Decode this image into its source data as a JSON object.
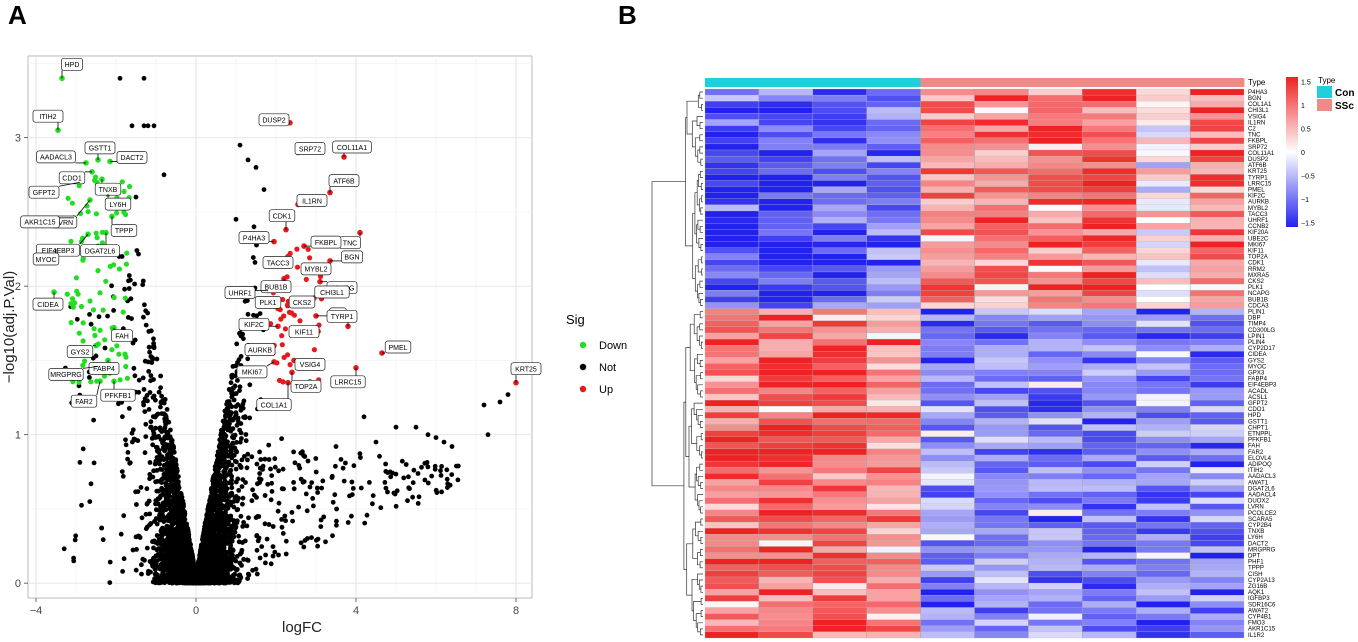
{
  "panels": {
    "a": "A",
    "b": "B"
  },
  "chart_data": [
    {
      "type": "scatter",
      "xlabel": "logFC",
      "ylabel": "−log10(adj.P.Val)",
      "xlim": [
        -4.2,
        8.4
      ],
      "ylim": [
        -0.1,
        3.55
      ],
      "xticks": [
        -4,
        0,
        4,
        8
      ],
      "yticks": [
        0,
        1,
        2,
        3
      ],
      "grid": true,
      "legend": {
        "title": "Sig",
        "position": "right",
        "items": [
          {
            "label": "Down",
            "color": "#22dd22"
          },
          {
            "label": "Not",
            "color": "#000000"
          },
          {
            "label": "Up",
            "color": "#e41a1c"
          }
        ]
      },
      "labeled_points": [
        {
          "gene": "HPD",
          "x": -3.35,
          "y": 3.4,
          "sig": "Down"
        },
        {
          "gene": "ITIH2",
          "x": -3.45,
          "y": 3.05,
          "sig": "Down"
        },
        {
          "gene": "GSTT1",
          "x": -2.45,
          "y": 2.85,
          "sig": "Down"
        },
        {
          "gene": "AADACL3",
          "x": -2.75,
          "y": 2.83,
          "sig": "Down"
        },
        {
          "gene": "DACT2",
          "x": -2.15,
          "y": 2.84,
          "sig": "Down"
        },
        {
          "gene": "CDO1",
          "x": -2.6,
          "y": 2.77,
          "sig": "Down"
        },
        {
          "gene": "TNXB",
          "x": -2.35,
          "y": 2.72,
          "sig": "Down"
        },
        {
          "gene": "GFPT2",
          "x": -2.9,
          "y": 2.7,
          "sig": "Down"
        },
        {
          "gene": "LY6H",
          "x": -2.2,
          "y": 2.62,
          "sig": "Down"
        },
        {
          "gene": "LVRN",
          "x": -2.65,
          "y": 2.58,
          "sig": "Down"
        },
        {
          "gene": "TPPP",
          "x": -2.1,
          "y": 2.47,
          "sig": "Down"
        },
        {
          "gene": "AKR1C15",
          "x": -3.05,
          "y": 2.46,
          "sig": "Down"
        },
        {
          "gene": "EIF4EBP3",
          "x": -2.7,
          "y": 2.35,
          "sig": "Down"
        },
        {
          "gene": "DGAT2L6",
          "x": -2.25,
          "y": 2.36,
          "sig": "Down"
        },
        {
          "gene": "MYOC",
          "x": -3.5,
          "y": 2.25,
          "sig": "Down"
        },
        {
          "gene": "CIDEA",
          "x": -3.55,
          "y": 1.96,
          "sig": "Down"
        },
        {
          "gene": "FAH",
          "x": -2.05,
          "y": 1.72,
          "sig": "Down"
        },
        {
          "gene": "GYS2",
          "x": -2.5,
          "y": 1.6,
          "sig": "Down"
        },
        {
          "gene": "FABP4",
          "x": -2.2,
          "y": 1.5,
          "sig": "Down"
        },
        {
          "gene": "MRGPRG",
          "x": -2.45,
          "y": 1.46,
          "sig": "Down"
        },
        {
          "gene": "PFKFB1",
          "x": -2.05,
          "y": 1.36,
          "sig": "Down"
        },
        {
          "gene": "FAR2",
          "x": -2.4,
          "y": 1.36,
          "sig": "Down"
        },
        {
          "gene": "DUSP2",
          "x": 2.35,
          "y": 3.1,
          "sig": "Up"
        },
        {
          "gene": "SRP72",
          "x": 2.55,
          "y": 2.9,
          "sig": "Up"
        },
        {
          "gene": "COL11A1",
          "x": 3.7,
          "y": 2.87,
          "sig": "Up"
        },
        {
          "gene": "ATF6B",
          "x": 3.35,
          "y": 2.63,
          "sig": "Up"
        },
        {
          "gene": "IL1RN",
          "x": 2.55,
          "y": 2.55,
          "sig": "Up"
        },
        {
          "gene": "CDK1",
          "x": 2.25,
          "y": 2.38,
          "sig": "Up"
        },
        {
          "gene": "TNC",
          "x": 4.1,
          "y": 2.36,
          "sig": "Up"
        },
        {
          "gene": "P4HA3",
          "x": 1.95,
          "y": 2.3,
          "sig": "Up"
        },
        {
          "gene": "FKBPL",
          "x": 2.7,
          "y": 2.27,
          "sig": "Up"
        },
        {
          "gene": "TACC3",
          "x": 2.3,
          "y": 2.2,
          "sig": "Up"
        },
        {
          "gene": "BGN",
          "x": 3.35,
          "y": 2.17,
          "sig": "Up"
        },
        {
          "gene": "MYBL2",
          "x": 2.7,
          "y": 2.13,
          "sig": "Up"
        },
        {
          "gene": "BUB1B",
          "x": 2.2,
          "y": 2.05,
          "sig": "Up"
        },
        {
          "gene": "NCAPG",
          "x": 3.1,
          "y": 2.03,
          "sig": "Up"
        },
        {
          "gene": "UHRF1",
          "x": 1.8,
          "y": 1.97,
          "sig": "Up"
        },
        {
          "gene": "CHI3L1",
          "x": 2.95,
          "y": 1.92,
          "sig": "Up"
        },
        {
          "gene": "CKS2",
          "x": 2.45,
          "y": 1.88,
          "sig": "Up"
        },
        {
          "gene": "PLK1",
          "x": 2.05,
          "y": 1.85,
          "sig": "Up"
        },
        {
          "gene": "C2",
          "x": 3.0,
          "y": 1.8,
          "sig": "Up"
        },
        {
          "gene": "KIF2C",
          "x": 2.05,
          "y": 1.73,
          "sig": "Up"
        },
        {
          "gene": "TYRP1",
          "x": 3.8,
          "y": 1.73,
          "sig": "Up"
        },
        {
          "gene": "KIF11",
          "x": 2.45,
          "y": 1.68,
          "sig": "Up"
        },
        {
          "gene": "PMEL",
          "x": 4.65,
          "y": 1.55,
          "sig": "Up"
        },
        {
          "gene": "AURKB",
          "x": 1.95,
          "y": 1.6,
          "sig": "Up"
        },
        {
          "gene": "VSIG4",
          "x": 2.45,
          "y": 1.5,
          "sig": "Up"
        },
        {
          "gene": "MKI67",
          "x": 1.95,
          "y": 1.49,
          "sig": "Up"
        },
        {
          "gene": "LRRC15",
          "x": 4.0,
          "y": 1.45,
          "sig": "Up"
        },
        {
          "gene": "TOP2A",
          "x": 2.4,
          "y": 1.42,
          "sig": "Up"
        },
        {
          "gene": "COL1A1",
          "x": 2.3,
          "y": 1.35,
          "sig": "Up"
        },
        {
          "gene": "KRT25",
          "x": 8.0,
          "y": 1.35,
          "sig": "Up"
        }
      ],
      "outlier_points": [
        {
          "x": -1.9,
          "y": 3.4
        },
        {
          "x": -1.3,
          "y": 3.4
        },
        {
          "x": -1.6,
          "y": 3.08
        },
        {
          "x": -1.3,
          "y": 3.08
        },
        {
          "x": -1.2,
          "y": 3.08
        },
        {
          "x": -1.05,
          "y": 3.08
        },
        {
          "x": -1.5,
          "y": 2.6
        },
        {
          "x": -0.8,
          "y": 2.75
        },
        {
          "x": 1.1,
          "y": 2.95
        },
        {
          "x": 1.3,
          "y": 2.85
        },
        {
          "x": 1.5,
          "y": 2.8
        },
        {
          "x": 1.7,
          "y": 2.65
        },
        {
          "x": 1.0,
          "y": 2.45
        },
        {
          "x": 1.45,
          "y": 2.4
        },
        {
          "x": 5.5,
          "y": 1.05
        },
        {
          "x": 5.8,
          "y": 1.0
        },
        {
          "x": 6.0,
          "y": 0.98
        },
        {
          "x": 6.2,
          "y": 0.95
        },
        {
          "x": 6.4,
          "y": 0.92
        },
        {
          "x": 7.2,
          "y": 1.2
        },
        {
          "x": 7.3,
          "y": 1.0
        },
        {
          "x": 7.6,
          "y": 1.22
        },
        {
          "x": 7.8,
          "y": 1.27
        },
        {
          "x": 5.0,
          "y": 1.05
        },
        {
          "x": 4.5,
          "y": 0.95
        },
        {
          "x": 3.5,
          "y": 0.92
        },
        {
          "x": 4.2,
          "y": 1.12
        }
      ]
    },
    {
      "type": "heatmap",
      "columns": 10,
      "column_groups": [
        "Con",
        "Con",
        "Con",
        "Con",
        "SSc",
        "SSc",
        "SSc",
        "SSc",
        "SSc",
        "SSc"
      ],
      "annotation_title": "Type",
      "annotation_legend": [
        {
          "label": "Con",
          "color": "#1fcfdc"
        },
        {
          "label": "SSc",
          "color": "#f08a86"
        }
      ],
      "color_scale": {
        "min": -1.5,
        "max": 1.5,
        "low": "#2222ee",
        "mid": "#ffffff",
        "high": "#ee2222",
        "ticks": [
          1.5,
          1,
          0.5,
          0,
          -0.5,
          -1,
          -1.5
        ],
        "tick_labels": [
          "1.5",
          "1",
          "0.5",
          "0",
          "−0.5",
          "−1",
          "−1.5"
        ]
      },
      "rows": [
        "P4HA3",
        "BGN",
        "COL1A1",
        "CHI3L1",
        "VSIG4",
        "IL1RN",
        "C2",
        "TNC",
        "FKBPL",
        "SRP72",
        "COL11A1",
        "DUSP2",
        "ATF6B",
        "KRT25",
        "TYRP1",
        "LRRC15",
        "PMEL",
        "KIF2C",
        "AURKB",
        "MYBL2",
        "TACC3",
        "UHRF1",
        "CCNB2",
        "KIF20A",
        "UBE2C",
        "MKI67",
        "KIF11",
        "TOP2A",
        "CDK1",
        "RRM2",
        "MXRA5",
        "CKS2",
        "PLK1",
        "NCAPG",
        "BUB1B",
        "CDCA3",
        "PLIN1",
        "DBP",
        "TIMP4",
        "CD300LG",
        "LPIN1",
        "PLIN4",
        "CYP2D17",
        "CIDEA",
        "GYS2",
        "MYOC",
        "GPX3",
        "FABP4",
        "EIF4EBP3",
        "ACADL",
        "ACSL1",
        "GFPT2",
        "CDO1",
        "HPD",
        "GSTT1",
        "CHPT1",
        "ETNPPL",
        "PFKFB1",
        "FAH",
        "FAR2",
        "ELOVL4",
        "ADIPOQ",
        "ITIH2",
        "AADACL3",
        "AWAT1",
        "DGAT2L6",
        "AADACL4",
        "DUOX2",
        "LVRN",
        "PCOLCE2",
        "SCARA5",
        "CYP2B4",
        "TNXB",
        "LY6H",
        "DACT2",
        "MRGPRG",
        "DPT",
        "PHF1",
        "TPPP",
        "CISH",
        "CYP2A13",
        "ZG16B",
        "AQK1",
        "IGFBP3",
        "SDR16C6",
        "AWAT2",
        "CYP4B1",
        "FMO3",
        "AKR1C15",
        "IL1R2"
      ],
      "up_rows": 36,
      "down_rows": 54,
      "group_means": {
        "up_genes": {
          "Con": -1.2,
          "SSc": 0.9
        },
        "down_genes": {
          "Con": 1.0,
          "SSc": -0.8
        }
      }
    }
  ]
}
